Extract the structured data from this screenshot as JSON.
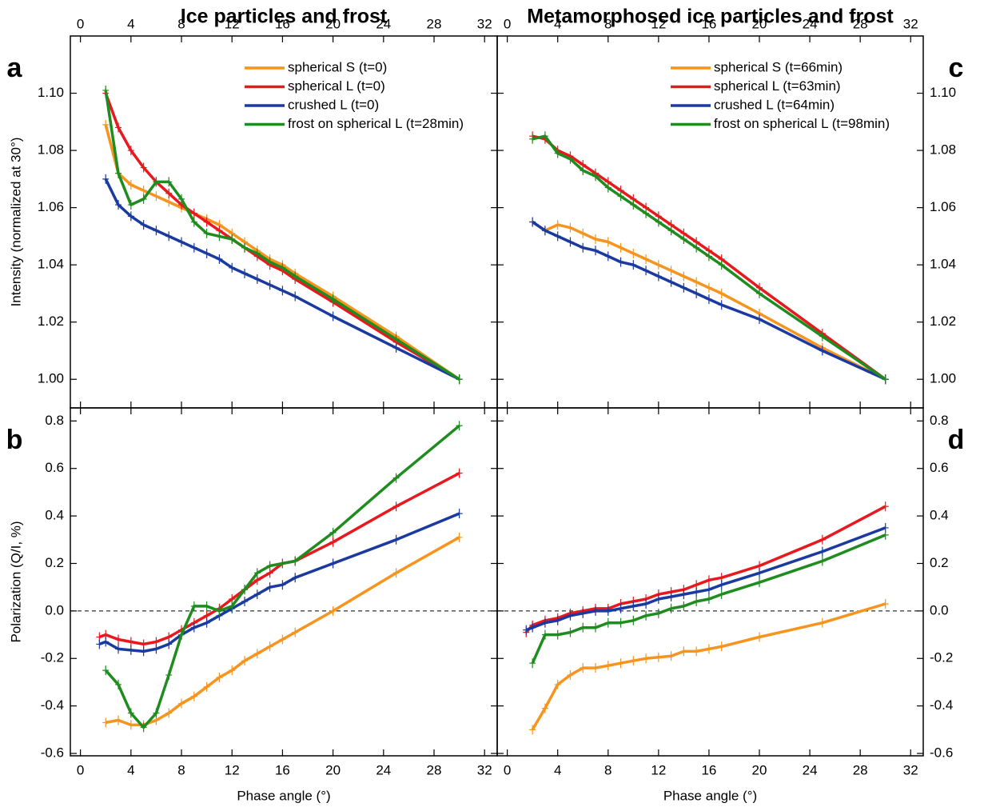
{
  "chart_data": [
    {
      "type": "line",
      "panel_label": "a",
      "title": "Ice particles and frost",
      "ylabel": "Intensity (normalized at 30°)",
      "x": [
        2,
        3,
        4,
        5,
        6,
        7,
        8,
        9,
        10,
        11,
        12,
        13,
        14,
        15,
        16,
        17,
        20,
        25,
        30
      ],
      "series": [
        {
          "name": "spherical S (t=0)",
          "color": "#f7941d",
          "values": [
            1.089,
            1.072,
            1.068,
            1.066,
            1.064,
            1.062,
            1.06,
            1.058,
            1.056,
            1.054,
            1.051,
            1.048,
            1.045,
            1.042,
            1.04,
            1.037,
            1.029,
            1.015,
            1.0
          ]
        },
        {
          "name": "spherical L (t=0)",
          "color": "#e8191e",
          "values": [
            1.1,
            1.088,
            1.08,
            1.074,
            1.069,
            1.065,
            1.061,
            1.058,
            1.055,
            1.052,
            1.049,
            1.046,
            1.043,
            1.04,
            1.038,
            1.035,
            1.027,
            1.013,
            1.0
          ]
        },
        {
          "name": "crushed L (t=0)",
          "color": "#1a3aa0",
          "values": [
            1.07,
            1.061,
            1.057,
            1.054,
            1.052,
            1.05,
            1.048,
            1.046,
            1.044,
            1.042,
            1.039,
            1.037,
            1.035,
            1.033,
            1.031,
            1.029,
            1.022,
            1.011,
            1.0
          ]
        },
        {
          "name": "frost on spherical L (t=28min)",
          "color": "#1f8c1f",
          "values": [
            1.101,
            1.072,
            1.061,
            1.063,
            1.069,
            1.069,
            1.063,
            1.055,
            1.051,
            1.05,
            1.049,
            1.046,
            1.044,
            1.041,
            1.039,
            1.036,
            1.028,
            1.014,
            1.0
          ]
        }
      ],
      "xlim": [
        -0.8,
        33
      ],
      "ylim": [
        0.99,
        1.12
      ],
      "xticks": [
        0,
        4,
        8,
        12,
        16,
        20,
        24,
        28,
        32
      ],
      "yticks": [
        {
          "value": 1.0,
          "label": "1.00"
        },
        1.02,
        1.04,
        1.06,
        1.08,
        {
          "value": 1.1,
          "label": "1.10"
        }
      ],
      "xaxis_side": "top",
      "yaxis_side": "left",
      "legend": "upper right"
    },
    {
      "type": "line",
      "panel_label": "b",
      "ylabel": "Polarization (Q/I, %)",
      "xlabel": "Phase angle (°)",
      "x": [
        1.5,
        2,
        3,
        4,
        5,
        6,
        7,
        8,
        9,
        10,
        11,
        12,
        13,
        14,
        15,
        16,
        17,
        20,
        25,
        30
      ],
      "series": [
        {
          "color": "#f7941d",
          "values": [
            null,
            -0.47,
            -0.46,
            -0.48,
            -0.48,
            -0.46,
            -0.43,
            -0.39,
            -0.36,
            -0.32,
            -0.28,
            -0.25,
            -0.21,
            -0.18,
            -0.15,
            -0.12,
            -0.09,
            0.0,
            0.16,
            0.31
          ]
        },
        {
          "color": "#e8191e",
          "values": [
            -0.11,
            -0.1,
            -0.12,
            -0.13,
            -0.14,
            -0.13,
            -0.11,
            -0.08,
            -0.05,
            -0.02,
            0.01,
            0.05,
            0.09,
            0.13,
            0.16,
            0.2,
            0.21,
            0.29,
            0.44,
            0.58
          ]
        },
        {
          "color": "#1a3aa0",
          "values": [
            -0.14,
            -0.13,
            -0.16,
            -0.165,
            -0.17,
            -0.16,
            -0.14,
            -0.1,
            -0.07,
            -0.05,
            -0.02,
            0.01,
            0.04,
            0.07,
            0.1,
            0.11,
            0.14,
            0.2,
            0.3,
            0.41
          ]
        },
        {
          "color": "#1f8c1f",
          "values": [
            null,
            -0.25,
            -0.31,
            -0.43,
            -0.49,
            -0.43,
            -0.27,
            -0.1,
            0.02,
            0.02,
            0.0,
            0.02,
            0.09,
            0.16,
            0.19,
            0.2,
            0.21,
            0.33,
            0.56,
            0.78
          ]
        }
      ],
      "xlim": [
        -0.8,
        33
      ],
      "ylim": [
        -0.61,
        0.855
      ],
      "xticks": [
        0,
        4,
        8,
        12,
        16,
        20,
        24,
        28,
        32
      ],
      "yticks": [
        -0.6,
        -0.4,
        -0.2,
        {
          "value": 0,
          "label": "0.0"
        },
        0.2,
        0.4,
        0.6,
        0.8
      ],
      "xaxis_side": "bottom",
      "yaxis_side": "left",
      "reference_line": 0
    },
    {
      "type": "line",
      "panel_label": "c",
      "title": "Metamorphosed ice particles and frost",
      "x": [
        2,
        3,
        4,
        5,
        6,
        7,
        8,
        9,
        10,
        11,
        12,
        13,
        14,
        15,
        16,
        17,
        20,
        25,
        30
      ],
      "series": [
        {
          "name": "spherical S (t=66min)",
          "color": "#f7941d",
          "values": [
            1.055,
            1.052,
            1.054,
            1.053,
            1.051,
            1.049,
            1.048,
            1.046,
            1.044,
            1.042,
            1.04,
            1.038,
            1.036,
            1.034,
            1.032,
            1.03,
            1.023,
            1.011,
            1.0
          ]
        },
        {
          "name": "spherical L (t=63min)",
          "color": "#e8191e",
          "values": [
            1.085,
            1.084,
            1.08,
            1.078,
            1.075,
            1.072,
            1.069,
            1.066,
            1.063,
            1.06,
            1.057,
            1.054,
            1.051,
            1.048,
            1.045,
            1.042,
            1.032,
            1.016,
            1.0
          ]
        },
        {
          "name": "crushed L (t=64min)",
          "color": "#1a3aa0",
          "values": [
            1.055,
            1.052,
            1.05,
            1.048,
            1.046,
            1.045,
            1.043,
            1.041,
            1.04,
            1.038,
            1.036,
            1.034,
            1.032,
            1.03,
            1.028,
            1.026,
            1.021,
            1.01,
            1.0
          ]
        },
        {
          "name": "frost on spherical L (t=98min)",
          "color": "#1f8c1f",
          "values": [
            1.084,
            1.085,
            1.079,
            1.077,
            1.073,
            1.071,
            1.067,
            1.064,
            1.061,
            1.058,
            1.055,
            1.052,
            1.049,
            1.046,
            1.043,
            1.04,
            1.03,
            1.015,
            1.0
          ]
        }
      ],
      "xlim": [
        -0.8,
        33
      ],
      "ylim": [
        0.99,
        1.12
      ],
      "xticks": [
        0,
        4,
        8,
        12,
        16,
        20,
        24,
        28,
        32
      ],
      "yticks": [
        {
          "value": 1.0,
          "label": "1.00"
        },
        1.02,
        1.04,
        1.06,
        1.08,
        {
          "value": 1.1,
          "label": "1.10"
        }
      ],
      "xaxis_side": "top",
      "yaxis_side": "right",
      "legend": "upper right"
    },
    {
      "type": "line",
      "panel_label": "d",
      "xlabel": "Phase angle (°)",
      "x": [
        1.5,
        2,
        3,
        4,
        5,
        6,
        7,
        8,
        9,
        10,
        11,
        12,
        13,
        14,
        15,
        16,
        17,
        20,
        25,
        30
      ],
      "series": [
        {
          "color": "#f7941d",
          "values": [
            null,
            -0.5,
            -0.41,
            -0.31,
            -0.27,
            -0.24,
            -0.24,
            -0.23,
            -0.22,
            -0.21,
            -0.2,
            -0.195,
            -0.19,
            -0.17,
            -0.17,
            -0.16,
            -0.15,
            -0.11,
            -0.05,
            0.03
          ]
        },
        {
          "color": "#e8191e",
          "values": [
            -0.09,
            -0.06,
            -0.04,
            -0.03,
            -0.01,
            0.0,
            0.01,
            0.01,
            0.03,
            0.04,
            0.05,
            0.07,
            0.08,
            0.09,
            0.11,
            0.13,
            0.14,
            0.19,
            0.3,
            0.44
          ]
        },
        {
          "color": "#1a3aa0",
          "values": [
            -0.08,
            -0.07,
            -0.05,
            -0.04,
            -0.02,
            -0.01,
            0.0,
            0.0,
            0.01,
            0.02,
            0.03,
            0.05,
            0.06,
            0.07,
            0.08,
            0.09,
            0.11,
            0.16,
            0.25,
            0.35
          ]
        },
        {
          "color": "#1f8c1f",
          "values": [
            null,
            -0.22,
            -0.1,
            -0.1,
            -0.09,
            -0.07,
            -0.07,
            -0.05,
            -0.05,
            -0.04,
            -0.02,
            -0.01,
            0.01,
            0.02,
            0.04,
            0.05,
            0.07,
            0.12,
            0.21,
            0.32
          ]
        }
      ],
      "xlim": [
        -0.8,
        33
      ],
      "ylim": [
        -0.61,
        0.855
      ],
      "xticks": [
        0,
        4,
        8,
        12,
        16,
        20,
        24,
        28,
        32
      ],
      "yticks": [
        -0.6,
        -0.4,
        -0.2,
        {
          "value": 0,
          "label": "0.0"
        },
        0.2,
        0.4,
        0.6,
        0.8
      ],
      "xaxis_side": "bottom",
      "yaxis_side": "right",
      "reference_line": 0
    }
  ]
}
